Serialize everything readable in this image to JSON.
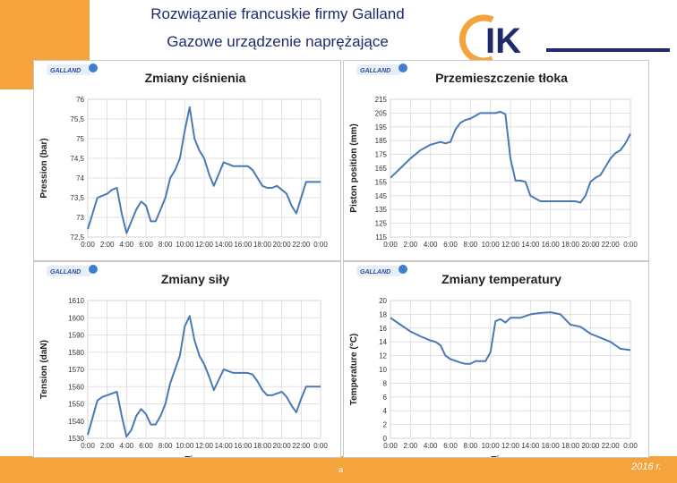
{
  "header": {
    "title_line1": "Rozwiązanie francuskie firmy Galland",
    "title_line2": "Gazowe urządzenie naprężające",
    "logo_text": "IK"
  },
  "footer": {
    "date_fragment": "2016 r.",
    "text_fragment": "a"
  },
  "colors": {
    "orange": "#f5a33c",
    "navy": "#1f2a6b",
    "line": "#4a7ab5",
    "grid": "#d9d9d9"
  },
  "chart_data": [
    {
      "type": "line",
      "badge": "GALLAND",
      "title": "Zmiany ciśnienia",
      "xlabel": "",
      "ylabel": "Pression (bar)",
      "categories": [
        "0:00",
        "2:00",
        "4:00",
        "6:00",
        "8:00",
        "10:00",
        "12:00",
        "14:00",
        "16:00",
        "18:00",
        "20:00",
        "22:00",
        "0:00"
      ],
      "yticks": [
        "72,5",
        "73",
        "73,5",
        "74",
        "74,5",
        "75",
        "75,5",
        "76"
      ],
      "ylim": [
        72.5,
        76
      ],
      "x": [
        0,
        1,
        1.5,
        2,
        2.5,
        3,
        3.5,
        4,
        4.5,
        5,
        5.5,
        6,
        6.5,
        7,
        7.5,
        8,
        8.5,
        9,
        9.5,
        10,
        10.5,
        11,
        11.5,
        12,
        12.5,
        13,
        13.5,
        14,
        14.5,
        15,
        15.5,
        16,
        16.5,
        17,
        17.5,
        18,
        18.5,
        19,
        19.5,
        20,
        20.5,
        21,
        21.5,
        22,
        22.5,
        23,
        23.5,
        24
      ],
      "values": [
        72.7,
        73.5,
        73.55,
        73.6,
        73.7,
        73.75,
        73.1,
        72.6,
        72.9,
        73.2,
        73.4,
        73.3,
        72.9,
        72.9,
        73.2,
        73.5,
        74.0,
        74.2,
        74.5,
        75.2,
        75.8,
        75.0,
        74.7,
        74.5,
        74.1,
        73.8,
        74.1,
        74.4,
        74.35,
        74.3,
        74.3,
        74.3,
        74.3,
        74.2,
        74.0,
        73.8,
        73.75,
        73.75,
        73.8,
        73.7,
        73.6,
        73.3,
        73.1,
        73.5,
        73.9,
        73.9,
        73.9,
        73.9
      ]
    },
    {
      "type": "line",
      "badge": "GALLAND",
      "title": "Przemieszczenie tłoka",
      "xlabel": "",
      "ylabel": "Piston position (mm)",
      "categories": [
        "0:00",
        "2:00",
        "4:00",
        "6:00",
        "8:00",
        "10:00",
        "12:00",
        "14:00",
        "16:00",
        "18:00",
        "20:00",
        "22:00",
        "0:00"
      ],
      "yticks": [
        "115",
        "125",
        "135",
        "145",
        "155",
        "165",
        "175",
        "185",
        "195",
        "205",
        "215"
      ],
      "ylim": [
        115,
        215
      ],
      "x": [
        0,
        1,
        2,
        3,
        4,
        5,
        5.5,
        6,
        6.5,
        7,
        7.5,
        8,
        8.5,
        9,
        9.5,
        10,
        10.5,
        11,
        11.5,
        12,
        12.5,
        13,
        13.5,
        14,
        15,
        16,
        16.5,
        17,
        17.5,
        18,
        18.5,
        19,
        19.5,
        20,
        20.5,
        21,
        21.5,
        22,
        22.5,
        23,
        23.5,
        24
      ],
      "values": [
        158,
        165,
        172,
        178,
        182,
        184,
        183,
        184,
        193,
        198,
        200,
        201,
        203,
        205,
        205,
        205,
        205,
        206,
        204,
        172,
        156,
        156,
        155,
        145,
        141,
        141,
        141,
        141,
        141,
        141,
        141,
        140,
        145,
        155,
        158,
        160,
        166,
        172,
        176,
        178,
        183,
        190
      ],
      "xmax_override": 24
    },
    {
      "type": "line",
      "badge": "GALLAND",
      "title": "Zmiany siły",
      "xlabel": "Time",
      "ylabel": "Tension (daN)",
      "categories": [
        "0:00",
        "2:00",
        "4:00",
        "6:00",
        "8:00",
        "10:00",
        "12:00",
        "14:00",
        "16:00",
        "18:00",
        "20:00",
        "22:00",
        "0:00"
      ],
      "yticks": [
        "1530",
        "1540",
        "1550",
        "1560",
        "1570",
        "1580",
        "1590",
        "1600",
        "1610"
      ],
      "ylim": [
        1530,
        1610
      ],
      "x": [
        0,
        1,
        1.5,
        2,
        2.5,
        3,
        3.5,
        4,
        4.5,
        5,
        5.5,
        6,
        6.5,
        7,
        7.5,
        8,
        8.5,
        9,
        9.5,
        10,
        10.5,
        11,
        11.5,
        12,
        12.5,
        13,
        13.5,
        14,
        14.5,
        15,
        15.5,
        16,
        16.5,
        17,
        17.5,
        18,
        18.5,
        19,
        19.5,
        20,
        20.5,
        21,
        21.5,
        22,
        22.5,
        23,
        23.5,
        24
      ],
      "values": [
        1532,
        1552,
        1554,
        1555,
        1556,
        1557,
        1543,
        1531,
        1535,
        1543,
        1547,
        1544,
        1538,
        1538,
        1543,
        1550,
        1562,
        1570,
        1578,
        1595,
        1601,
        1587,
        1578,
        1573,
        1566,
        1558,
        1564,
        1570,
        1569,
        1568,
        1568,
        1568,
        1568,
        1567,
        1563,
        1558,
        1555,
        1555,
        1556,
        1557,
        1554,
        1549,
        1545,
        1553,
        1560,
        1560,
        1560,
        1560
      ]
    },
    {
      "type": "line",
      "badge": "GALLAND",
      "title": "Zmiany temperatury",
      "xlabel": "Time",
      "ylabel": "Temperature (°C)",
      "categories": [
        "0:00",
        "2:00",
        "4:00",
        "6:00",
        "8:00",
        "10:00",
        "12:00",
        "14:00",
        "16:00",
        "18:00",
        "20:00",
        "22:00",
        "0:00"
      ],
      "yticks": [
        "0",
        "2",
        "4",
        "6",
        "8",
        "10",
        "12",
        "14",
        "16",
        "18",
        "20"
      ],
      "ylim": [
        0,
        20
      ],
      "x": [
        0,
        1,
        2,
        3,
        4,
        4.5,
        5,
        5.5,
        6,
        7,
        7.5,
        8,
        8.5,
        9,
        9.5,
        10,
        10.5,
        11,
        11.5,
        12,
        13,
        14,
        15,
        16,
        17,
        18,
        19,
        20,
        21,
        22,
        23,
        24
      ],
      "values": [
        17.5,
        16.5,
        15.5,
        14.8,
        14.2,
        14.0,
        13.5,
        12.0,
        11.5,
        11.0,
        10.8,
        10.8,
        11.2,
        11.2,
        11.2,
        12.5,
        17.0,
        17.3,
        16.8,
        17.5,
        17.5,
        18.0,
        18.2,
        18.3,
        18.0,
        16.5,
        16.2,
        15.2,
        14.6,
        14.0,
        13.0,
        12.8
      ]
    }
  ]
}
